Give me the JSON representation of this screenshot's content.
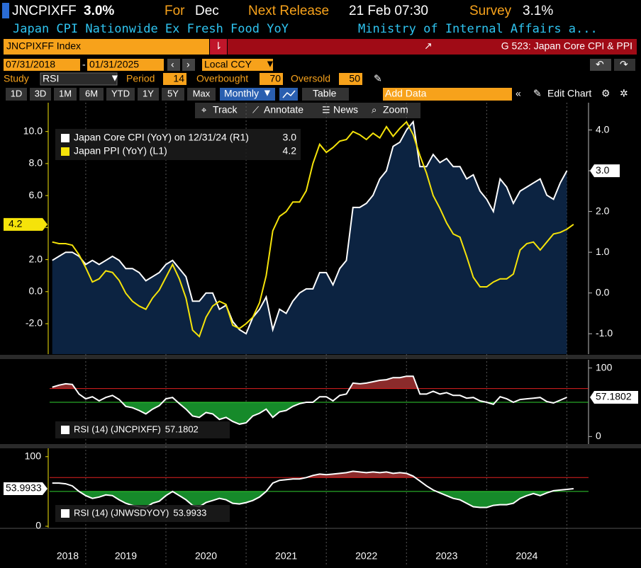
{
  "header": {
    "ticker": "JNCPIXFF",
    "value": "3.0%",
    "for_label": "For",
    "period": "Dec",
    "next_release_label": "Next Release",
    "next_release": "21 Feb 07:30",
    "survey_label": "Survey",
    "survey": "3.1%",
    "description": "Japan CPI Nationwide Ex Fresh Food YoY",
    "source": "Ministry of Internal Affairs a..."
  },
  "bar": {
    "security": "JNCPIXFF Index",
    "page": "G 523: Japan Core CPI & PPI"
  },
  "controls": {
    "start_date": "07/31/2018",
    "end_date": "01/31/2025",
    "currency": "Local CCY",
    "study_label": "Study",
    "study": "RSI",
    "period_label": "Period",
    "period": 14,
    "overbought_label": "Overbought",
    "overbought": 70,
    "oversold_label": "Oversold",
    "oversold": 50
  },
  "toolbar": {
    "ranges": [
      "1D",
      "3D",
      "1M",
      "6M",
      "YTD",
      "1Y",
      "5Y",
      "Max"
    ],
    "frequency": "Monthly",
    "table": "Table",
    "add_data": "Add Data",
    "edit_chart": "Edit Chart",
    "tools": [
      "Track",
      "Annotate",
      "News",
      "Zoom"
    ]
  },
  "chart_data": [
    {
      "type": "line",
      "x": [
        2018.583,
        2018.667,
        2018.75,
        2018.833,
        2018.917,
        2019.0,
        2019.083,
        2019.167,
        2019.25,
        2019.333,
        2019.417,
        2019.5,
        2019.583,
        2019.667,
        2019.75,
        2019.833,
        2019.917,
        2020.0,
        2020.083,
        2020.167,
        2020.25,
        2020.333,
        2020.417,
        2020.5,
        2020.583,
        2020.667,
        2020.75,
        2020.833,
        2020.917,
        2021.0,
        2021.083,
        2021.167,
        2021.25,
        2021.333,
        2021.417,
        2021.5,
        2021.583,
        2021.667,
        2021.75,
        2021.833,
        2021.917,
        2022.0,
        2022.083,
        2022.167,
        2022.25,
        2022.333,
        2022.417,
        2022.5,
        2022.583,
        2022.667,
        2022.75,
        2022.833,
        2022.917,
        2023.0,
        2023.083,
        2023.167,
        2023.25,
        2023.333,
        2023.417,
        2023.5,
        2023.583,
        2023.667,
        2023.75,
        2023.833,
        2023.917,
        2024.0,
        2024.083,
        2024.167,
        2024.25,
        2024.333,
        2024.417,
        2024.5,
        2024.583,
        2024.667,
        2024.75,
        2024.833,
        2024.917,
        2025.0,
        2025.083
      ],
      "xlim": [
        2018.55,
        2025.27
      ],
      "xticks": [
        2019,
        2020,
        2021,
        2022,
        2023,
        2024,
        2025
      ],
      "year_labels": [
        "2018",
        "2019",
        "2020",
        "2021",
        "2022",
        "2023",
        "2024"
      ],
      "ylim": [
        -3.9,
        11.8
      ],
      "yticks": [
        {
          "value": -2,
          "label": "-2.0"
        },
        {
          "value": 0,
          "label": "0.0"
        },
        {
          "value": 2,
          "label": "2.0"
        },
        {
          "value": 4,
          "label": "4.0"
        },
        {
          "value": 6,
          "label": "6.0"
        },
        {
          "value": 8,
          "label": "8.0"
        },
        {
          "value": 10,
          "label": "10.0"
        }
      ],
      "y2lim": [
        -1.5,
        4.67
      ],
      "y2ticks": [
        {
          "value": -1,
          "label": "-1.0"
        },
        {
          "value": 0,
          "label": "0.0"
        },
        {
          "value": 1,
          "label": "1.0"
        },
        {
          "value": 2,
          "label": "2.0"
        },
        {
          "value": 3,
          "label": "3.0"
        },
        {
          "value": 4,
          "label": "4.0"
        }
      ],
      "series": [
        {
          "name": "Japan Core CPI (YoY) on 12/31/24 (R1)",
          "color": "#ffffff",
          "fill": "#0c2341",
          "axis": "y2",
          "last_value_label": "3.0",
          "values": [
            0.8,
            0.9,
            1.0,
            1.0,
            0.9,
            0.7,
            0.8,
            0.7,
            0.8,
            0.9,
            0.8,
            0.6,
            0.6,
            0.5,
            0.3,
            0.4,
            0.5,
            0.7,
            0.8,
            0.6,
            0.4,
            -0.2,
            -0.2,
            0.0,
            0.0,
            -0.4,
            -0.3,
            -0.7,
            -0.9,
            -1.0,
            -0.6,
            -0.4,
            -0.1,
            -0.9,
            -0.4,
            -0.5,
            -0.2,
            0.0,
            0.1,
            0.1,
            0.5,
            0.5,
            0.2,
            0.6,
            0.8,
            2.1,
            2.1,
            2.2,
            2.4,
            2.8,
            3.0,
            3.6,
            3.7,
            4.0,
            4.2,
            3.1,
            3.1,
            3.4,
            3.2,
            3.3,
            3.1,
            3.1,
            2.8,
            2.9,
            2.5,
            2.3,
            2.0,
            2.8,
            2.6,
            2.2,
            2.5,
            2.6,
            2.7,
            2.8,
            2.4,
            2.3,
            2.7,
            3.0,
            null
          ]
        },
        {
          "name": "Japan PPI (YoY) (L1)",
          "color": "#f5e30a",
          "axis": "y",
          "last_value_label": "4.2",
          "values": [
            3.1,
            3.0,
            3.0,
            2.9,
            2.3,
            1.5,
            0.6,
            0.8,
            1.3,
            1.2,
            0.7,
            -0.1,
            -0.6,
            -0.9,
            -1.1,
            -0.4,
            0.1,
            0.9,
            1.7,
            0.8,
            -0.4,
            -2.4,
            -2.8,
            -1.6,
            -0.9,
            -0.6,
            -0.8,
            -2.1,
            -2.3,
            -2.0,
            -1.6,
            -0.7,
            1.0,
            3.8,
            4.7,
            5.0,
            5.6,
            5.6,
            6.3,
            8.0,
            9.2,
            8.7,
            9.0,
            9.4,
            9.5,
            10.0,
            9.8,
            9.5,
            9.9,
            9.6,
            10.3,
            9.7,
            10.2,
            10.6,
            9.8,
            8.5,
            7.4,
            6.0,
            5.2,
            4.3,
            3.6,
            3.4,
            2.2,
            0.9,
            0.3,
            0.3,
            0.6,
            0.8,
            0.8,
            1.1,
            2.6,
            3.0,
            3.1,
            2.6,
            3.1,
            3.6,
            3.7,
            3.9,
            4.2
          ]
        }
      ]
    },
    {
      "type": "rsi",
      "axis_side": "right",
      "ylim": [
        -11,
        112
      ],
      "yticks": [
        0,
        100
      ],
      "over_color": "#8b2b2b",
      "under_color": "#168a2a",
      "series": [
        {
          "name": "RSI (14) (JNCPIXFF)",
          "color": "#ffffff",
          "values": [
            72,
            75,
            77,
            76,
            62,
            55,
            58,
            52,
            57,
            60,
            54,
            44,
            42,
            38,
            33,
            40,
            45,
            55,
            57,
            48,
            40,
            30,
            28,
            35,
            33,
            25,
            28,
            22,
            18,
            20,
            30,
            34,
            40,
            28,
            36,
            38,
            44,
            48,
            50,
            50,
            58,
            58,
            52,
            60,
            62,
            78,
            77,
            78,
            80,
            82,
            83,
            86,
            86,
            88,
            88,
            62,
            62,
            66,
            62,
            64,
            60,
            60,
            56,
            57,
            52,
            50,
            47,
            58,
            55,
            50,
            54,
            55,
            56,
            57,
            51,
            49,
            53,
            57.1802,
            null
          ]
        }
      ]
    },
    {
      "type": "rsi",
      "axis_side": "left",
      "ylim": [
        -2,
        112
      ],
      "yticks": [
        0,
        100
      ],
      "over_color": "#8b2b2b",
      "under_color": "#168a2a",
      "series": [
        {
          "name": "RSI (14) (JNWSDYOY)",
          "color": "#ffffff",
          "values": [
            62,
            62,
            61,
            58,
            50,
            44,
            40,
            42,
            45,
            44,
            38,
            33,
            30,
            28,
            27,
            33,
            36,
            44,
            50,
            44,
            38,
            30,
            28,
            34,
            37,
            40,
            38,
            33,
            32,
            34,
            37,
            42,
            50,
            62,
            66,
            67,
            68,
            68,
            70,
            73,
            75,
            74,
            75,
            76,
            77,
            79,
            78,
            77,
            78,
            77,
            78,
            76,
            77,
            76,
            72,
            65,
            58,
            52,
            48,
            44,
            40,
            38,
            33,
            28,
            27,
            27,
            30,
            31,
            31,
            33,
            40,
            44,
            47,
            44,
            48,
            51,
            52,
            53,
            53.9933
          ]
        }
      ]
    }
  ]
}
